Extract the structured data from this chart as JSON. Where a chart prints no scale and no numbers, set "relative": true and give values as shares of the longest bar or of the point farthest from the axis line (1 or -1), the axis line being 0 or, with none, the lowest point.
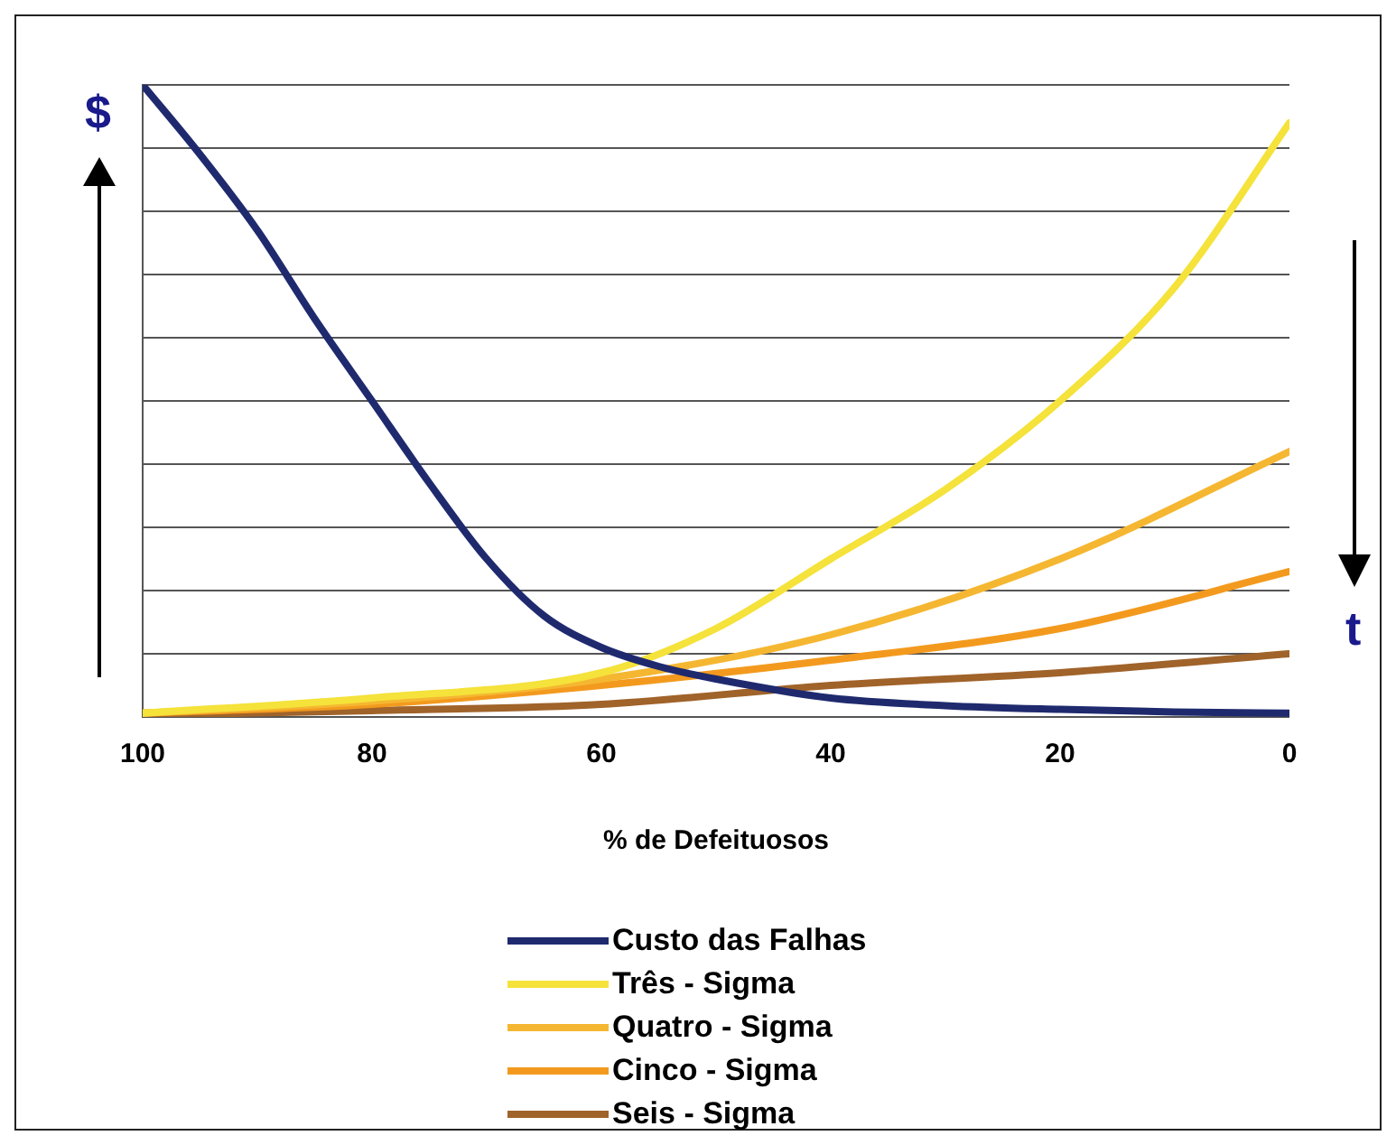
{
  "chart_data": {
    "type": "line",
    "relative": true,
    "xlabel": "% de Defeituosos",
    "xlim": [
      100,
      0
    ],
    "xticks": [
      100,
      80,
      60,
      40,
      20,
      0
    ],
    "grid": "y",
    "legend": "bottom",
    "marker": "none",
    "annotations": [
      "$",
      "t"
    ],
    "series": [
      {
        "name": "Custo das Falhas",
        "color": "#1f2a6e",
        "x": [
          100,
          95,
          90,
          85,
          80,
          75,
          70,
          65,
          60,
          55,
          50,
          40,
          30,
          20,
          10,
          0
        ],
        "values": [
          1,
          0.89,
          0.77,
          0.63,
          0.5,
          0.37,
          0.25,
          0.16,
          0.11,
          0.08,
          0.06,
          0.03,
          0.018,
          0.012,
          0.008,
          0.006
        ]
      },
      {
        "name": "Três - Sigma",
        "color": "#f5e23a",
        "x": [
          100,
          80,
          60,
          50,
          40,
          30,
          20,
          10,
          0
        ],
        "values": [
          0.006,
          0.03,
          0.07,
          0.14,
          0.25,
          0.36,
          0.5,
          0.68,
          0.94
        ]
      },
      {
        "name": "Quatro - Sigma",
        "color": "#f5b731",
        "x": [
          100,
          80,
          60,
          40,
          20,
          0
        ],
        "values": [
          0.006,
          0.025,
          0.06,
          0.13,
          0.25,
          0.42
        ]
      },
      {
        "name": "Cinco - Sigma",
        "color": "#f39a1e",
        "x": [
          100,
          80,
          60,
          40,
          20,
          0
        ],
        "values": [
          0.006,
          0.02,
          0.05,
          0.09,
          0.14,
          0.23
        ]
      },
      {
        "name": "Seis - Sigma",
        "color": "#a0632a",
        "x": [
          100,
          80,
          60,
          40,
          20,
          0
        ],
        "values": [
          0.003,
          0.01,
          0.02,
          0.05,
          0.07,
          0.1
        ]
      }
    ]
  }
}
